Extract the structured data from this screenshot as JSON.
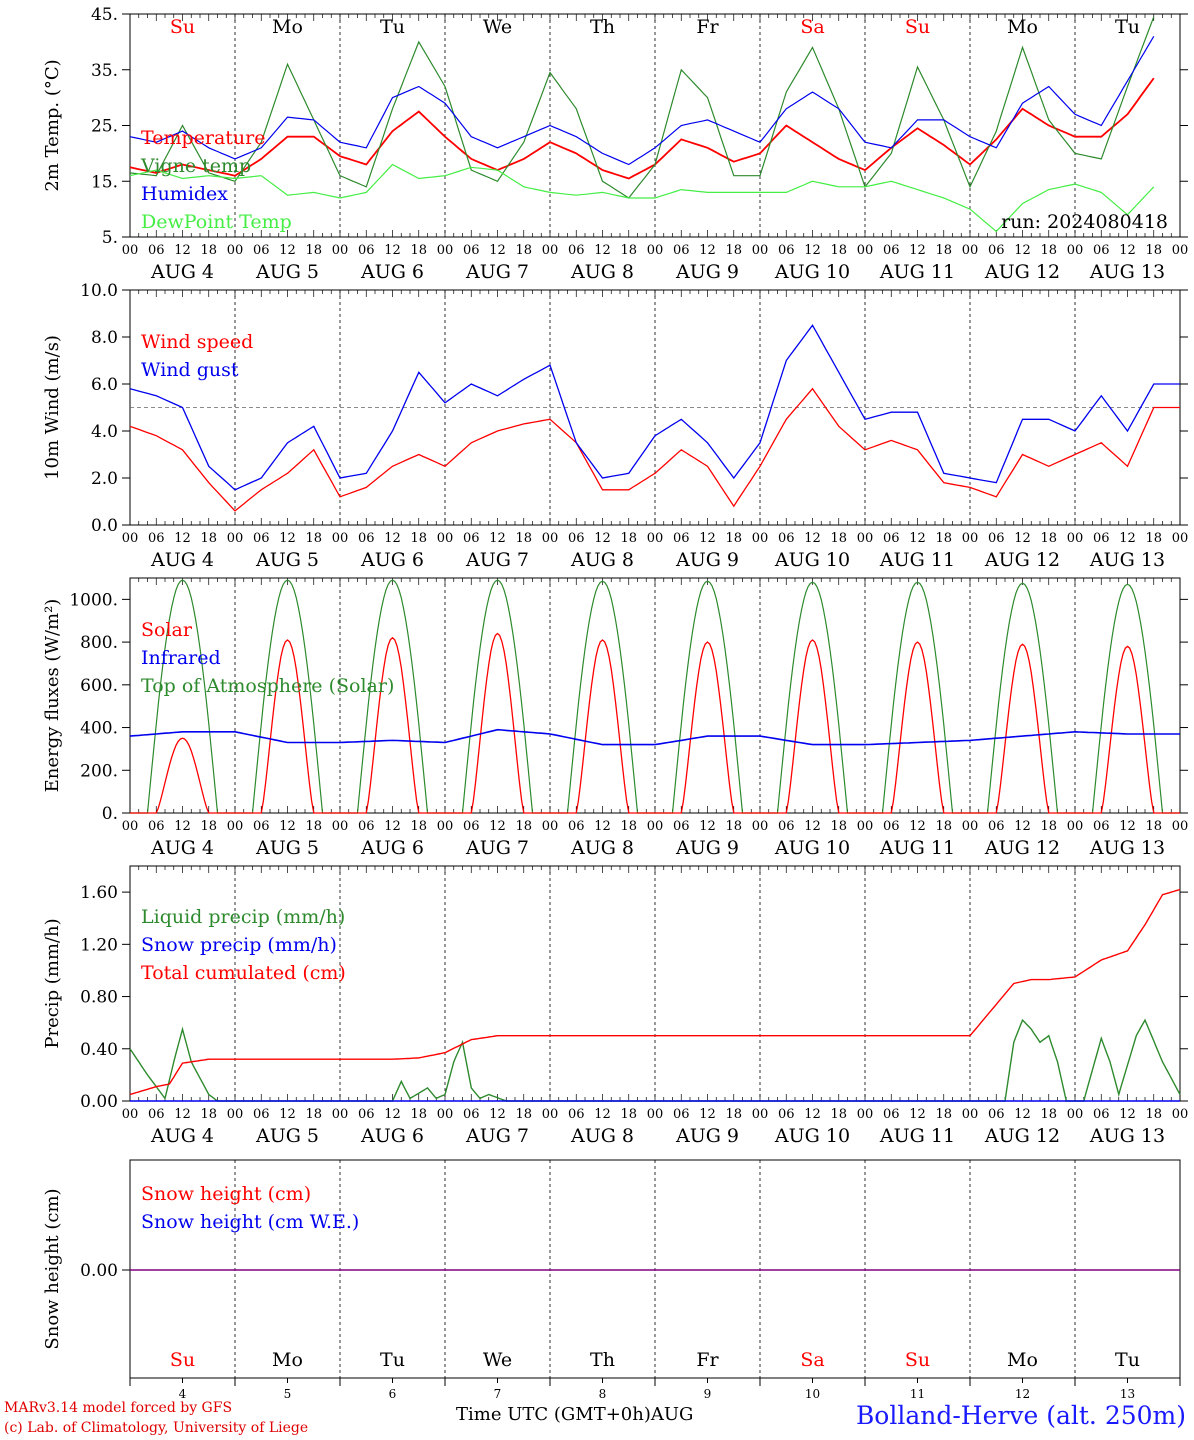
{
  "chart_data": [
    {
      "type": "line",
      "ylabel": "2m Temp. (°C)",
      "ylim": [
        5,
        45
      ],
      "yticks": [
        "5.",
        "15.",
        "25.",
        "35.",
        "45."
      ],
      "days_top": [
        "Su",
        "Mo",
        "Tu",
        "We",
        "Th",
        "Fr",
        "Sa",
        "Su",
        "Mo",
        "Tu"
      ],
      "run_label": "run: 2024080418",
      "x_hours": [
        "00",
        "06",
        "12",
        "18"
      ],
      "x_dates": [
        "AUG  4",
        "AUG  5",
        "AUG  6",
        "AUG  7",
        "AUG  8",
        "AUG  9",
        "AUG 10",
        "AUG 11",
        "AUG 12",
        "AUG 13"
      ],
      "x_end": "00",
      "legend": [
        "Temperature",
        "Vigne temp",
        "Humidex",
        "DewPoint Temp"
      ],
      "series": [
        {
          "name": "Temperature",
          "color": "#ff0000",
          "x_hours": [
            0,
            6,
            12,
            18,
            24,
            30,
            36,
            42,
            48,
            54,
            60,
            66,
            72,
            78,
            84,
            90,
            96,
            102,
            108,
            114,
            120,
            126,
            132,
            138,
            144,
            150,
            156,
            162,
            168,
            174,
            180,
            186,
            192,
            198,
            204,
            210,
            216,
            222,
            228,
            234
          ],
          "values": [
            17.5,
            16.5,
            18,
            17,
            16,
            19,
            23,
            23,
            19.5,
            18,
            24,
            27.5,
            23,
            19,
            17,
            19,
            22,
            20,
            17,
            15.5,
            18,
            22.5,
            21,
            18.5,
            20,
            25,
            22,
            19,
            17,
            21,
            24.5,
            21.5,
            18,
            22.5,
            28,
            25,
            23,
            23,
            27,
            33.5
          ]
        },
        {
          "name": "Vigne temp",
          "color": "#2d8a2d",
          "x_hours": [
            0,
            6,
            12,
            18,
            24,
            30,
            36,
            42,
            48,
            54,
            60,
            66,
            72,
            78,
            84,
            90,
            96,
            102,
            108,
            114,
            120,
            126,
            132,
            138,
            144,
            150,
            156,
            162,
            168,
            174,
            180,
            186,
            192,
            198,
            204,
            210,
            216,
            222,
            228,
            234
          ],
          "values": [
            16.5,
            16,
            25,
            16.5,
            15,
            22,
            36,
            26,
            16,
            14,
            28,
            40,
            32,
            17,
            15,
            22,
            34.5,
            28,
            15,
            12,
            18,
            35,
            30,
            16,
            16,
            31,
            39,
            28,
            14,
            20,
            35.5,
            26,
            14,
            24,
            39,
            26,
            20,
            19,
            32,
            44.5
          ]
        },
        {
          "name": "Humidex",
          "color": "#0000ee",
          "x_hours": [
            0,
            6,
            12,
            18,
            24,
            30,
            36,
            42,
            48,
            54,
            60,
            66,
            72,
            78,
            84,
            90,
            96,
            102,
            108,
            114,
            120,
            126,
            132,
            138,
            144,
            150,
            156,
            162,
            168,
            174,
            180,
            186,
            192,
            198,
            204,
            210,
            216,
            222,
            228,
            234
          ],
          "values": [
            23,
            22,
            24,
            21,
            19,
            21,
            26.5,
            26,
            22,
            21,
            30,
            32,
            29,
            23,
            21,
            23,
            25,
            23,
            20,
            18,
            21,
            25,
            26,
            24,
            22,
            28,
            31,
            28,
            22,
            21,
            26,
            26,
            23,
            21,
            29,
            32,
            27,
            25,
            33,
            41
          ]
        },
        {
          "name": "DewPoint Temp",
          "color": "#44ee44",
          "x_hours": [
            0,
            6,
            12,
            18,
            24,
            30,
            36,
            42,
            48,
            54,
            60,
            66,
            72,
            78,
            84,
            90,
            96,
            102,
            108,
            114,
            120,
            126,
            132,
            138,
            144,
            150,
            156,
            162,
            168,
            174,
            180,
            186,
            192,
            198,
            204,
            210,
            216,
            222,
            228,
            234
          ],
          "values": [
            16,
            17,
            15.5,
            16,
            15.5,
            16,
            12.5,
            13,
            12,
            13,
            18,
            15.5,
            16,
            17.5,
            17,
            14,
            13,
            12.5,
            13,
            12,
            12,
            13.5,
            13,
            13,
            13,
            13,
            15,
            14,
            14,
            15,
            13.5,
            12,
            10,
            6,
            11,
            13.5,
            14.5,
            13,
            9,
            14
          ]
        }
      ]
    },
    {
      "type": "line",
      "ylabel": "10m Wind (m/s)",
      "ylim": [
        0,
        10
      ],
      "yticks": [
        "0.0",
        "2.0",
        "4.0",
        "6.0",
        "8.0",
        "10.0"
      ],
      "reference_line": 5,
      "legend": [
        "Wind speed",
        "Wind gust"
      ],
      "series": [
        {
          "name": "Wind speed",
          "color": "#ff0000",
          "x_hours": [
            0,
            6,
            12,
            18,
            24,
            30,
            36,
            42,
            48,
            54,
            60,
            66,
            72,
            78,
            84,
            90,
            96,
            102,
            108,
            114,
            120,
            126,
            132,
            138,
            144,
            150,
            156,
            162,
            168,
            174,
            180,
            186,
            192,
            198,
            204,
            210,
            216,
            222,
            228,
            234
          ],
          "values": [
            4.2,
            3.8,
            3.2,
            1.8,
            0.6,
            1.5,
            2.2,
            3.2,
            1.2,
            1.6,
            2.5,
            3.0,
            2.5,
            3.5,
            4.0,
            4.3,
            4.5,
            3.5,
            1.5,
            1.5,
            2.2,
            3.2,
            2.5,
            0.8,
            2.5,
            4.5,
            5.8,
            4.2,
            3.2,
            3.6,
            3.2,
            1.8,
            1.6,
            1.2,
            3.0,
            2.5,
            3.0,
            3.5,
            2.5,
            5.0
          ]
        },
        {
          "name": "Wind gust",
          "color": "#0000ee",
          "x_hours": [
            0,
            6,
            12,
            18,
            24,
            30,
            36,
            42,
            48,
            54,
            60,
            66,
            72,
            78,
            84,
            90,
            96,
            102,
            108,
            114,
            120,
            126,
            132,
            138,
            144,
            150,
            156,
            162,
            168,
            174,
            180,
            186,
            192,
            198,
            204,
            210,
            216,
            222,
            228,
            234
          ],
          "values": [
            5.8,
            5.5,
            5.0,
            2.5,
            1.5,
            2.0,
            3.5,
            4.2,
            2.0,
            2.2,
            4.0,
            6.5,
            5.2,
            6.0,
            5.5,
            6.2,
            6.8,
            3.5,
            2.0,
            2.2,
            3.8,
            4.5,
            3.5,
            2.0,
            3.5,
            7.0,
            8.5,
            6.5,
            4.5,
            4.8,
            4.8,
            2.2,
            2.0,
            1.8,
            4.5,
            4.5,
            4.0,
            5.5,
            4.0,
            6.0
          ]
        }
      ]
    },
    {
      "type": "line",
      "ylabel": "Energy fluxes (W/m2)",
      "ylim": [
        0,
        1100
      ],
      "yticks": [
        "0.",
        "200.",
        "400.",
        "600.",
        "800.",
        "1000."
      ],
      "legend": [
        "Solar",
        "Infrared",
        "Top of Atmosphere (Solar)"
      ],
      "series": [
        {
          "name": "Solar",
          "color": "#ff0000",
          "peaks": [
            350,
            810,
            820,
            840,
            810,
            800,
            810,
            800,
            790,
            780
          ]
        },
        {
          "name": "Infrared",
          "color": "#0000ee",
          "x_hours": [
            0,
            12,
            24,
            36,
            48,
            60,
            72,
            84,
            96,
            108,
            120,
            132,
            144,
            156,
            168,
            180,
            192,
            204,
            216,
            228,
            240
          ],
          "values": [
            360,
            380,
            380,
            330,
            330,
            340,
            330,
            390,
            370,
            320,
            320,
            360,
            360,
            320,
            320,
            330,
            340,
            360,
            380,
            370,
            370
          ]
        },
        {
          "name": "Top of Atmosphere (Solar)",
          "color": "#2d8a2d",
          "peaks": [
            1090,
            1090,
            1090,
            1090,
            1085,
            1085,
            1080,
            1080,
            1075,
            1070
          ]
        }
      ]
    },
    {
      "type": "line",
      "ylabel": "Precip (mm/h)",
      "ylim": [
        0,
        1.8
      ],
      "yticks": [
        "0.00",
        "0.40",
        "0.80",
        "1.20",
        "1.60"
      ],
      "legend": [
        "Liquid precip (mm/h)",
        "Snow precip (mm/h)",
        "Total cumulated (cm)"
      ],
      "series": [
        {
          "name": "Total cumulated (cm)",
          "color": "#ff0000",
          "x_hours": [
            0,
            6,
            9,
            12,
            18,
            24,
            60,
            66,
            72,
            78,
            84,
            90,
            96,
            180,
            192,
            202,
            206,
            210,
            216,
            222,
            228,
            232,
            236,
            240
          ],
          "values": [
            0.05,
            0.11,
            0.13,
            0.29,
            0.32,
            0.32,
            0.32,
            0.33,
            0.37,
            0.47,
            0.5,
            0.5,
            0.5,
            0.5,
            0.5,
            0.9,
            0.93,
            0.93,
            0.95,
            1.08,
            1.15,
            1.35,
            1.58,
            1.62
          ]
        },
        {
          "name": "Liquid precip (mm/h)",
          "color": "#2d8a2d",
          "x_hours": [
            0,
            4,
            8,
            10,
            12,
            14,
            18,
            20,
            24,
            60,
            62,
            64,
            68,
            70,
            72,
            74,
            76,
            78,
            80,
            82,
            86,
            200,
            202,
            204,
            206,
            208,
            210,
            212,
            214,
            218,
            222,
            224,
            226,
            230,
            232,
            236,
            240
          ],
          "values": [
            0.4,
            0.2,
            0.02,
            0.3,
            0.55,
            0.3,
            0.05,
            0.0,
            0.0,
            0.0,
            0.15,
            0.02,
            0.1,
            0.02,
            0.05,
            0.3,
            0.45,
            0.1,
            0.02,
            0.05,
            0.0,
            0.0,
            0.45,
            0.62,
            0.55,
            0.45,
            0.5,
            0.3,
            0.0,
            0.0,
            0.48,
            0.3,
            0.05,
            0.5,
            0.62,
            0.3,
            0.05
          ]
        },
        {
          "name": "Snow precip (mm/h)",
          "color": "#0000ee",
          "x_hours": [
            0,
            240
          ],
          "values": [
            0,
            0
          ]
        }
      ]
    },
    {
      "type": "line",
      "ylabel": "Snow height (cm)",
      "yticks": [
        "0.00"
      ],
      "legend": [
        "Snow height (cm)",
        "Snow height (cm W.E.)"
      ],
      "days_bottom": [
        "Su",
        "Mo",
        "Tu",
        "We",
        "Th",
        "Fr",
        "Sa",
        "Su",
        "Mo",
        "Tu"
      ],
      "day_numbers": [
        "4",
        "5",
        "6",
        "7",
        "8",
        "9",
        "10",
        "11",
        "12",
        "13"
      ],
      "series": [
        {
          "name": "Snow height (cm)",
          "color": "#ff0000",
          "values": [
            0,
            0
          ]
        },
        {
          "name": "Snow height (cm W.E.)",
          "color": "#0000ee",
          "values": [
            0,
            0
          ]
        }
      ]
    }
  ],
  "footer": {
    "credit1": "MARv3.14 model forced by GFS",
    "credit2": "(c) Lab. of Climatology, University of Liege",
    "xaxis_title": "Time UTC (GMT+0h)AUG",
    "station": "Bolland-Herve (alt. 250m)"
  },
  "colors": {
    "red": "#ff0000",
    "blue": "#0000ee",
    "green": "#2d8a2d",
    "lightgreen": "#44ee44",
    "purple": "#800080"
  }
}
